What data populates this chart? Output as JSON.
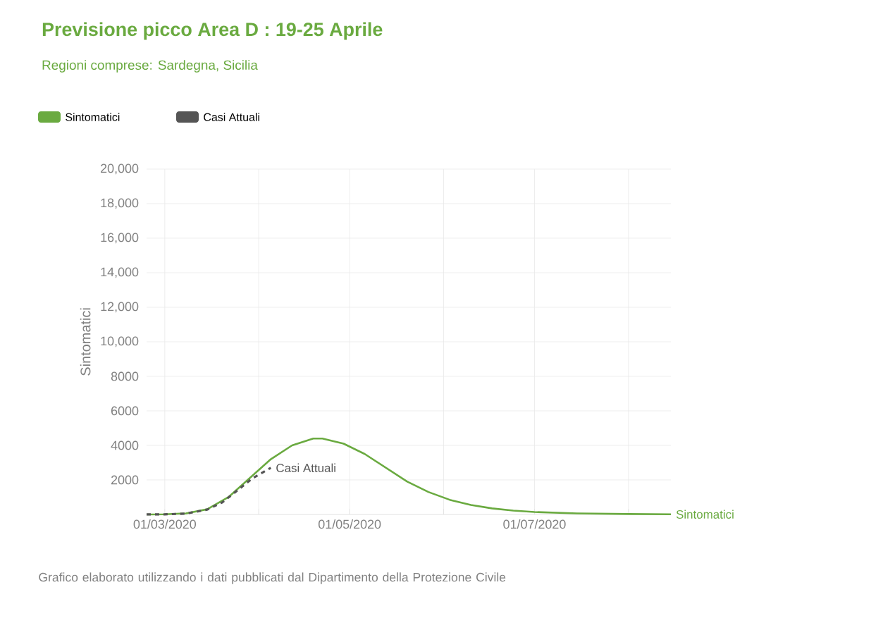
{
  "chart_data": {
    "type": "line",
    "title": "Previsione picco Area D : 19-25 Aprile",
    "subtitle": "Regioni comprese: Sardegna, Sicilia",
    "ylabel": "Sintomatici",
    "x": [
      "2020-02-24",
      "2020-03-01",
      "2020-03-08",
      "2020-03-15",
      "2020-03-22",
      "2020-03-29",
      "2020-04-05",
      "2020-04-12",
      "2020-04-19",
      "2020-04-22",
      "2020-04-29",
      "2020-05-06",
      "2020-05-13",
      "2020-05-20",
      "2020-05-27",
      "2020-06-03",
      "2020-06-10",
      "2020-06-17",
      "2020-06-24",
      "2020-07-01",
      "2020-07-15",
      "2020-08-01",
      "2020-08-15"
    ],
    "series": [
      {
        "name": "Sintomatici",
        "color": "#6aaa40",
        "values": [
          0,
          10,
          60,
          300,
          1000,
          2100,
          3200,
          4000,
          4400,
          4400,
          4100,
          3500,
          2700,
          1900,
          1300,
          850,
          550,
          350,
          220,
          140,
          60,
          25,
          10
        ]
      },
      {
        "name": "Casi Attuali",
        "color": "#555555",
        "line_style": "dashed",
        "x": [
          "2020-02-24",
          "2020-03-01",
          "2020-03-08",
          "2020-03-15",
          "2020-03-20",
          "2020-03-25",
          "2020-03-30",
          "2020-04-05"
        ],
        "values": [
          0,
          5,
          50,
          280,
          700,
          1400,
          2100,
          2700
        ]
      }
    ],
    "xlim": [
      "2020-02-24",
      "2020-08-15"
    ],
    "xticks": [
      {
        "value": "2020-03-01",
        "label": "01/03/2020"
      },
      {
        "value": "2020-04-01",
        "label": null
      },
      {
        "value": "2020-05-01",
        "label": "01/05/2020"
      },
      {
        "value": "2020-06-01",
        "label": null
      },
      {
        "value": "2020-07-01",
        "label": "01/07/2020"
      },
      {
        "value": "2020-08-01",
        "label": null
      }
    ],
    "ylim": [
      0,
      20000
    ],
    "yticks": [
      2000,
      4000,
      6000,
      8000,
      {
        "value": 10000,
        "label": "10,000"
      },
      {
        "value": 12000,
        "label": "12,000"
      },
      {
        "value": 14000,
        "label": "14,000"
      },
      {
        "value": 16000,
        "label": "16,000"
      },
      {
        "value": 18000,
        "label": "18,000"
      },
      {
        "value": 20000,
        "label": "20,000"
      }
    ],
    "grid": true,
    "legend": "top left",
    "annotations": [
      "Grafico elaborato utilizzando i dati pubblicati dal Dipartimento della Protezione Civile"
    ]
  }
}
